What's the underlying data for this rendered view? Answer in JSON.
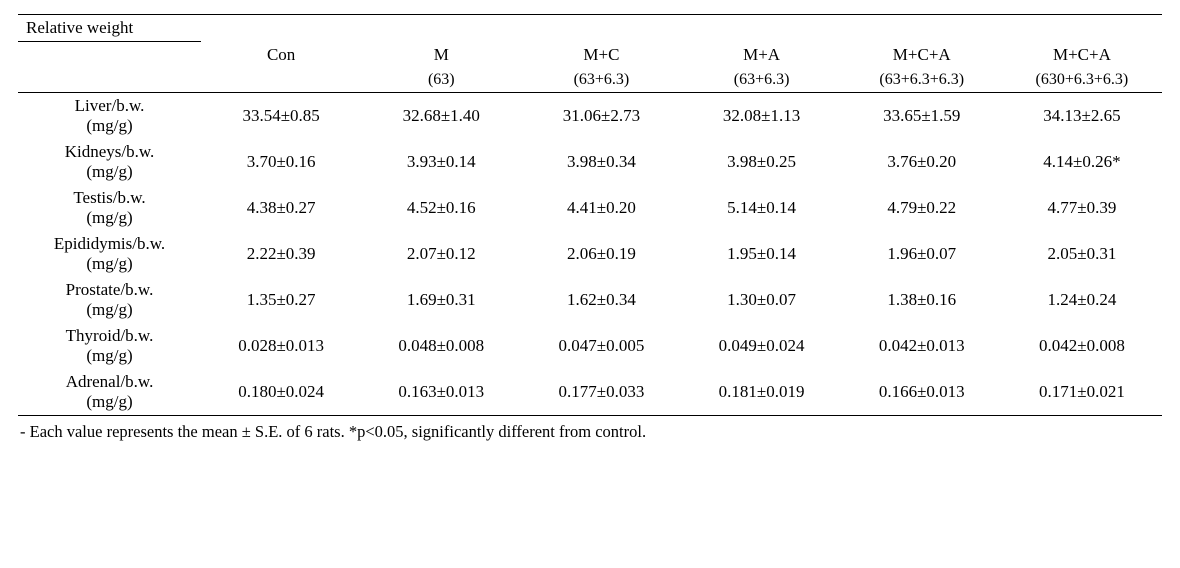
{
  "table": {
    "title": "Relative weight",
    "columns": [
      {
        "top": "Con",
        "sub": ""
      },
      {
        "top": "M",
        "sub": "(63)"
      },
      {
        "top": "M+C",
        "sub": "(63+6.3)"
      },
      {
        "top": "M+A",
        "sub": "(63+6.3)"
      },
      {
        "top": "M+C+A",
        "sub": "(63+6.3+6.3)"
      },
      {
        "top": "M+C+A",
        "sub": "(630+6.3+6.3)"
      }
    ],
    "rows": [
      {
        "label_top": "Liver/b.w.",
        "label_sub": "(mg/g)",
        "cells": [
          "33.54±0.85",
          "32.68±1.40",
          "31.06±2.73",
          "32.08±1.13",
          "33.65±1.59",
          "34.13±2.65"
        ]
      },
      {
        "label_top": "Kidneys/b.w.",
        "label_sub": "(mg/g)",
        "cells": [
          "3.70±0.16",
          "3.93±0.14",
          "3.98±0.34",
          "3.98±0.25",
          "3.76±0.20",
          "4.14±0.26*"
        ]
      },
      {
        "label_top": "Testis/b.w.",
        "label_sub": "(mg/g)",
        "cells": [
          "4.38±0.27",
          "4.52±0.16",
          "4.41±0.20",
          "5.14±0.14",
          "4.79±0.22",
          "4.77±0.39"
        ]
      },
      {
        "label_top": "Epididymis/b.w.",
        "label_sub": "(mg/g)",
        "cells": [
          "2.22±0.39",
          "2.07±0.12",
          "2.06±0.19",
          "1.95±0.14",
          "1.96±0.07",
          "2.05±0.31"
        ]
      },
      {
        "label_top": "Prostate/b.w.",
        "label_sub": "(mg/g)",
        "cells": [
          "1.35±0.27",
          "1.69±0.31",
          "1.62±0.34",
          "1.30±0.07",
          "1.38±0.16",
          "1.24±0.24"
        ]
      },
      {
        "label_top": "Thyroid/b.w.",
        "label_sub": "(mg/g)",
        "cells": [
          "0.028±0.013",
          "0.048±0.008",
          "0.047±0.005",
          "0.049±0.024",
          "0.042±0.013",
          "0.042±0.008"
        ]
      },
      {
        "label_top": "Adrenal/b.w.",
        "label_sub": "(mg/g)",
        "cells": [
          "0.180±0.024",
          "0.163±0.013",
          "0.177±0.033",
          "0.181±0.019",
          "0.166±0.013",
          "0.171±0.021"
        ]
      }
    ],
    "footnote": "- Each value represents the mean ± S.E. of 6 rats. *p<0.05, significantly different from control."
  }
}
